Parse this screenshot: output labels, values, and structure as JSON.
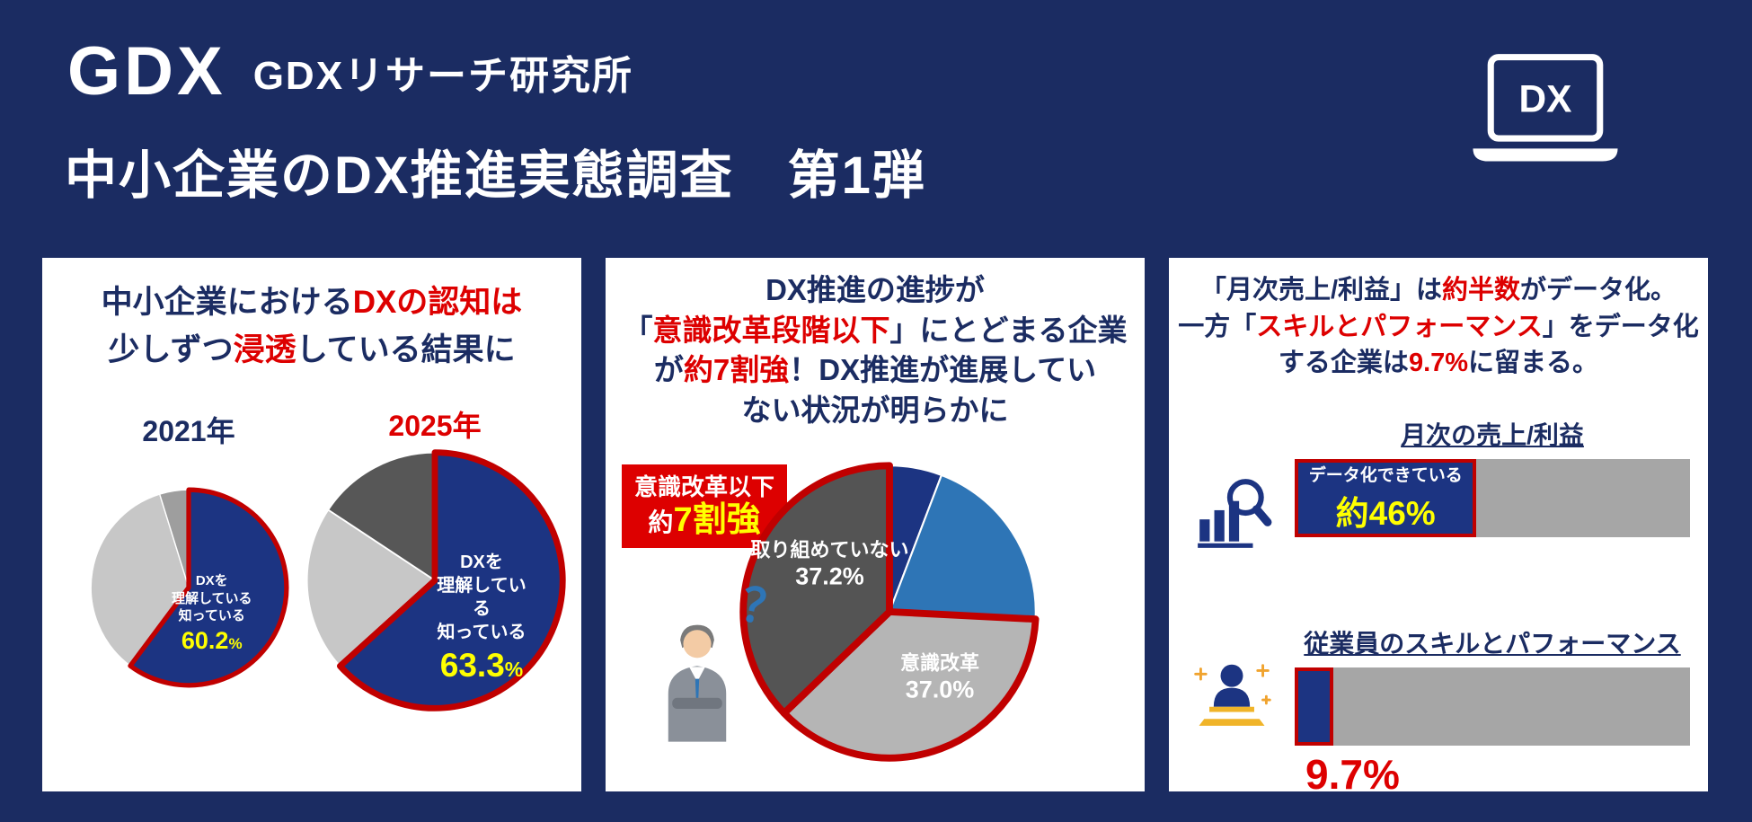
{
  "header": {
    "logo_text": "GDX",
    "org_name": "GDXリサーチ研究所",
    "main_title": "中小企業のDX推進実態調査　第1弾",
    "laptop_label": "DX"
  },
  "colors": {
    "background": "#1b2c62",
    "pie_blue": "#1c3482",
    "highlight_red": "#c00000",
    "text_red": "#dd0000",
    "accent_yellow": "#ffff00",
    "light_blue": "#2e75b6",
    "bar_gray": "#a6a6a6"
  },
  "panel1": {
    "title": {
      "p1": "中小企業における",
      "p2": "DXの認知は",
      "p3": "少しずつ",
      "p4": "浸透",
      "p5": "している結果に"
    }
  },
  "panel2": {
    "title": {
      "p1": "DX推進の進捗が",
      "p2": "「",
      "p3": "意識改革段階以下",
      "p4": "」にとどまる企業",
      "p5": "が",
      "p6": "約7割強",
      "p7": "！DX推進が進展してい",
      "p8": "ない状況が明らかに"
    },
    "badge": {
      "line1": "意識改革以下",
      "line2a": "約",
      "line2b": "7割強"
    },
    "question_mark": "？"
  },
  "panel3": {
    "title": {
      "p1": "「月次売上/利益」は",
      "p2": "約半数",
      "p3": "がデータ化。",
      "p4": "一方「",
      "p5": "スキルとパフォーマンス",
      "p6": "」をデータ化",
      "p7": "する企業は",
      "p8": "9.7%",
      "p9": "に留まる。"
    }
  },
  "chart_data": [
    {
      "type": "pie",
      "title": "中小企業におけるDXの認知は少しずつ浸透している結果に",
      "pies": [
        {
          "year": "2021年",
          "center": {
            "l1": "DXを",
            "l2": "理解している",
            "l3": "知っている"
          },
          "value_label": "60.2",
          "unit": "%",
          "segments": [
            {
              "label": "DXを理解している・知っている",
              "value": 60.2,
              "color": "#1c3482",
              "highlighted": true
            },
            {
              "label": "",
              "value": 35.0,
              "color": "#c7c7c7",
              "highlighted": false
            },
            {
              "label": "",
              "value": 4.8,
              "color": "#9e9e9e",
              "highlighted": false
            }
          ]
        },
        {
          "year": "2025年",
          "center": {
            "l1": "DXを",
            "l2": "理解している",
            "l3": "知っている"
          },
          "value_label": "63.3",
          "unit": "%",
          "segments": [
            {
              "label": "DXを理解している・知っている",
              "value": 63.3,
              "color": "#1c3482",
              "highlighted": true
            },
            {
              "label": "",
              "value": 21.0,
              "color": "#c7c7c7",
              "highlighted": false
            },
            {
              "label": "",
              "value": 15.7,
              "color": "#575757",
              "highlighted": false
            }
          ]
        }
      ]
    },
    {
      "type": "pie",
      "title": "DX推進の進捗が「意識改革段階以下」にとどまる企業が約7割強！DX推進が進展していない状況が明らかに",
      "annotation": "意識改革以下 約7割強",
      "highlight_total": 74.2,
      "segments": [
        {
          "label": "",
          "value": 5.8,
          "color": "#1c3482",
          "highlighted": false
        },
        {
          "label": "",
          "value": 20.0,
          "color": "#2e75b6",
          "highlighted": false
        },
        {
          "label": "意識改革",
          "value_label": "37.0%",
          "value": 37.0,
          "color": "#b5b5b5",
          "highlighted": true
        },
        {
          "label": "取り組めていない",
          "value_label": "37.2%",
          "value": 37.2,
          "color": "#545454",
          "highlighted": true
        }
      ]
    },
    {
      "type": "bar",
      "title": "「月次売上/利益」は約半数がデータ化。一方「スキルとパフォーマンス」をデータ化する企業は9.7%に留まる。",
      "categories": [
        "月次の売上/利益",
        "従業員のスキルとパフォーマンス"
      ],
      "values": [
        46,
        9.7
      ],
      "value_labels": [
        "約46%",
        "9.7%"
      ],
      "fill_annotation": "データ化できている",
      "xlim": [
        0,
        100
      ]
    }
  ]
}
